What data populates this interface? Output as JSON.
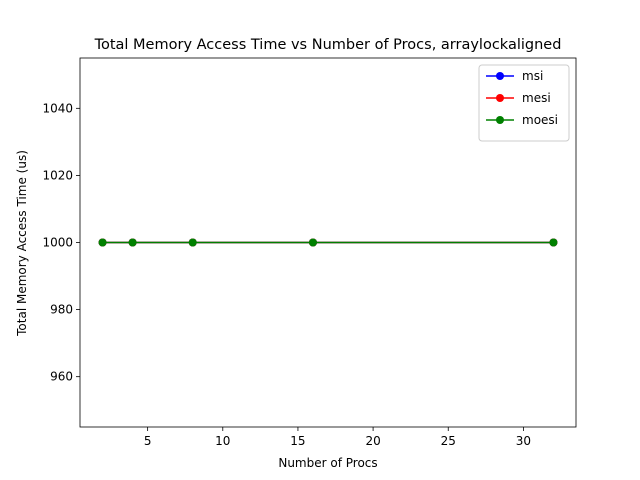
{
  "chart_data": {
    "type": "line",
    "title": "Total Memory Access Time vs Number of Procs, arraylockaligned",
    "xlabel": "Number of Procs",
    "ylabel": "Total Memory Access Time (us)",
    "x": [
      2,
      4,
      8,
      16,
      32
    ],
    "xlim": [
      0.5,
      33.5
    ],
    "ylim": [
      945,
      1055
    ],
    "xticks": [
      5,
      10,
      15,
      20,
      25,
      30
    ],
    "yticks": [
      960,
      980,
      1000,
      1020,
      1040
    ],
    "grid": false,
    "legend_position": "top-right",
    "series": [
      {
        "name": "msi",
        "color": "#0000ff",
        "values": [
          1000,
          1000,
          1000,
          1000,
          1000
        ]
      },
      {
        "name": "mesi",
        "color": "#ff0000",
        "values": [
          1000,
          1000,
          1000,
          1000,
          1000
        ]
      },
      {
        "name": "moesi",
        "color": "#008000",
        "values": [
          1000,
          1000,
          1000,
          1000,
          1000
        ]
      }
    ]
  }
}
